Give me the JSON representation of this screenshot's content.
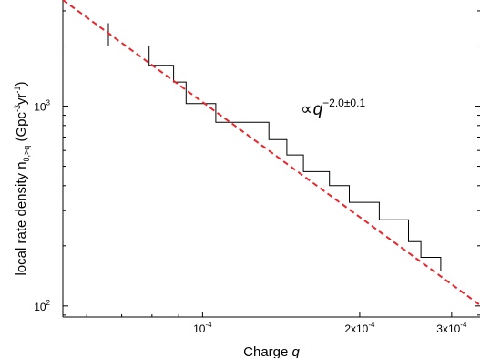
{
  "chart_data": {
    "type": "line",
    "xlabel": "Charge",
    "xlabel_symbol": "q",
    "ylabel_main": "local rate density n",
    "ylabel_sub": "0,>q",
    "ylabel_unit_prefix": "(Gpc",
    "ylabel_unit_exp1": "-3",
    "ylabel_unit_mid": "yr",
    "ylabel_unit_exp2": "-1",
    "ylabel_unit_suffix": ")",
    "x_scale": "log",
    "y_scale": "log",
    "xlim": [
      5.4e-05,
      0.00034
    ],
    "ylim": [
      88,
      3400
    ],
    "grid": false,
    "x_ticks": [
      {
        "value": 0.0001,
        "mantissa": "",
        "exp": "-4"
      },
      {
        "value": 0.0002,
        "mantissa": "2x",
        "exp": "-4"
      },
      {
        "value": 0.0003,
        "mantissa": "3x",
        "exp": "-4"
      }
    ],
    "y_ticks": [
      {
        "value": 100,
        "exp": "2"
      },
      {
        "value": 1000,
        "exp": "3"
      }
    ],
    "annotation": {
      "prefix": "∝",
      "symbol": "q",
      "exponent": "−2.0±0.1",
      "x": 0.000121,
      "y": 1040
    },
    "series": [
      {
        "style": "step",
        "color": "#000000",
        "x": [
          6.6e-05,
          6.6e-05,
          7.9e-05,
          7.9e-05,
          8.8e-05,
          8.8e-05,
          9.3e-05,
          9.3e-05,
          0.000106,
          0.000106,
          0.000134,
          0.000134,
          0.000145,
          0.000145,
          0.000156,
          0.000156,
          0.000175,
          0.000175,
          0.000191,
          0.000191,
          0.000218,
          0.000218,
          0.000248,
          0.000248,
          0.000262,
          0.000262,
          0.000286,
          0.000286
        ],
        "y": [
          2600,
          2000,
          2000,
          1600,
          1600,
          1320,
          1320,
          1030,
          1030,
          830,
          830,
          680,
          680,
          570,
          570,
          470,
          470,
          400,
          400,
          330,
          330,
          270,
          270,
          210,
          210,
          175,
          175,
          150
        ]
      },
      {
        "style": "dashed-fit",
        "color": "#e8262b",
        "x": [
          5.4e-05,
          0.00034
        ],
        "y": [
          3405,
          101
        ]
      }
    ]
  }
}
